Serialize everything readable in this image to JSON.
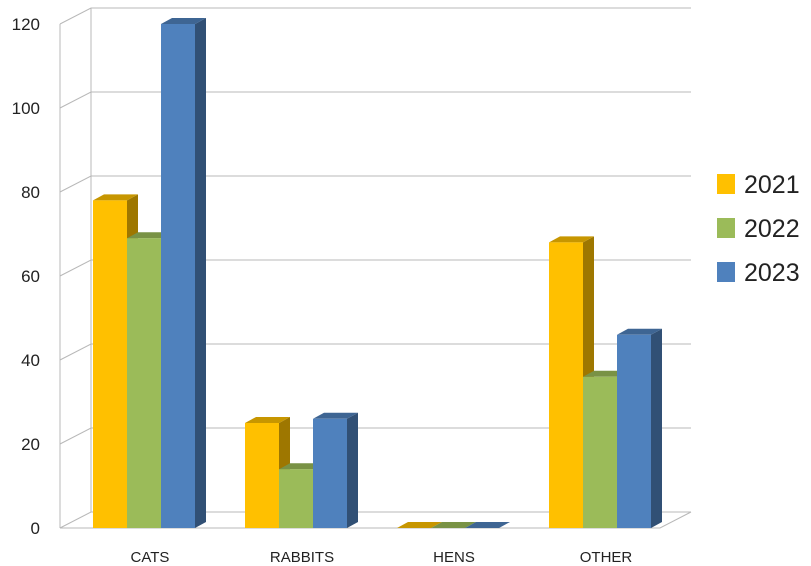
{
  "chart_data": {
    "type": "bar",
    "categories": [
      "CATS",
      "RABBITS",
      "HENS",
      "OTHER"
    ],
    "series": [
      {
        "name": "2021",
        "values": [
          78,
          25,
          0,
          68
        ],
        "color": "#FFC000"
      },
      {
        "name": "2022",
        "values": [
          69,
          14,
          0,
          36
        ],
        "color": "#9BBB59"
      },
      {
        "name": "2023",
        "values": [
          120,
          26,
          0,
          46
        ],
        "color": "#4F81BD"
      }
    ],
    "title": "",
    "xlabel": "",
    "ylabel": "",
    "ylim": [
      0,
      120
    ],
    "yticks": [
      0,
      20,
      40,
      60,
      80,
      100,
      120
    ],
    "grid": true,
    "legend_position": "right",
    "style": "3d-clustered-column"
  }
}
